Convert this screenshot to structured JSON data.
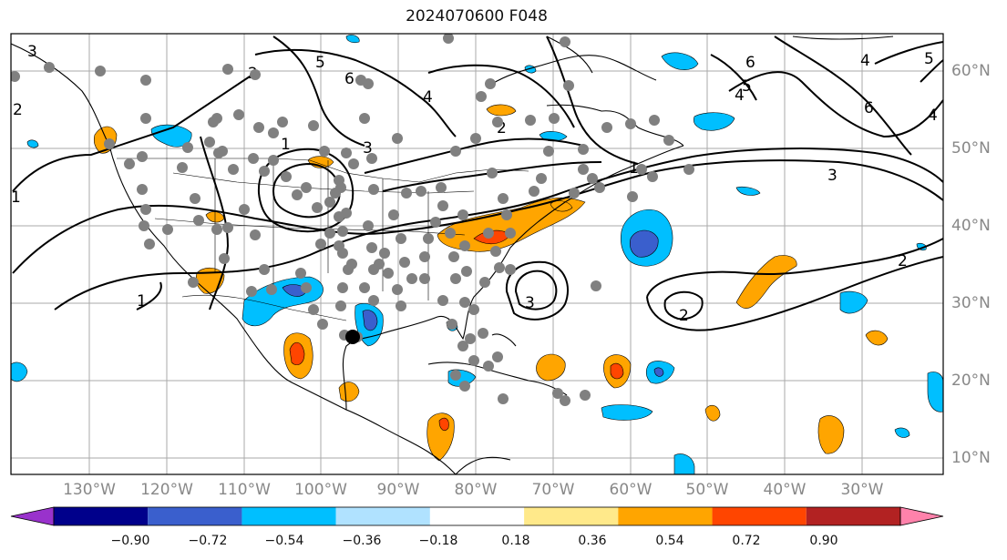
{
  "title": "2024070600 F048",
  "lon_labels": [
    "130°W",
    "120°W",
    "110°W",
    "100°W",
    "90°W",
    "80°W",
    "70°W",
    "60°W",
    "50°W",
    "40°W",
    "30°W"
  ],
  "lat_labels": [
    "60°N",
    "50°N",
    "40°N",
    "30°N",
    "20°N",
    "10°N"
  ],
  "colorbar": {
    "ticks": [
      "−0.90",
      "−0.72",
      "−0.54",
      "−0.36",
      "−0.18",
      "0.18",
      "0.36",
      "0.54",
      "0.72",
      "0.90"
    ],
    "colors": [
      "#9932cc",
      "#00008b",
      "#3a5fcd",
      "#00bfff",
      "#b0e2ff",
      "#ffffff",
      "#ffe98a",
      "#ffa500",
      "#ff4500",
      "#b22222",
      "#ff82ab"
    ]
  },
  "contour_labels": [
    "1",
    "2",
    "3",
    "4",
    "5",
    "6"
  ],
  "colors": {
    "positive_fill": "#ffa500",
    "strong_positive": "#ff4500",
    "negative_fill": "#00bfff",
    "strong_negative": "#3a5fcd",
    "station": "#808080",
    "highlight_station": "#000000"
  }
}
